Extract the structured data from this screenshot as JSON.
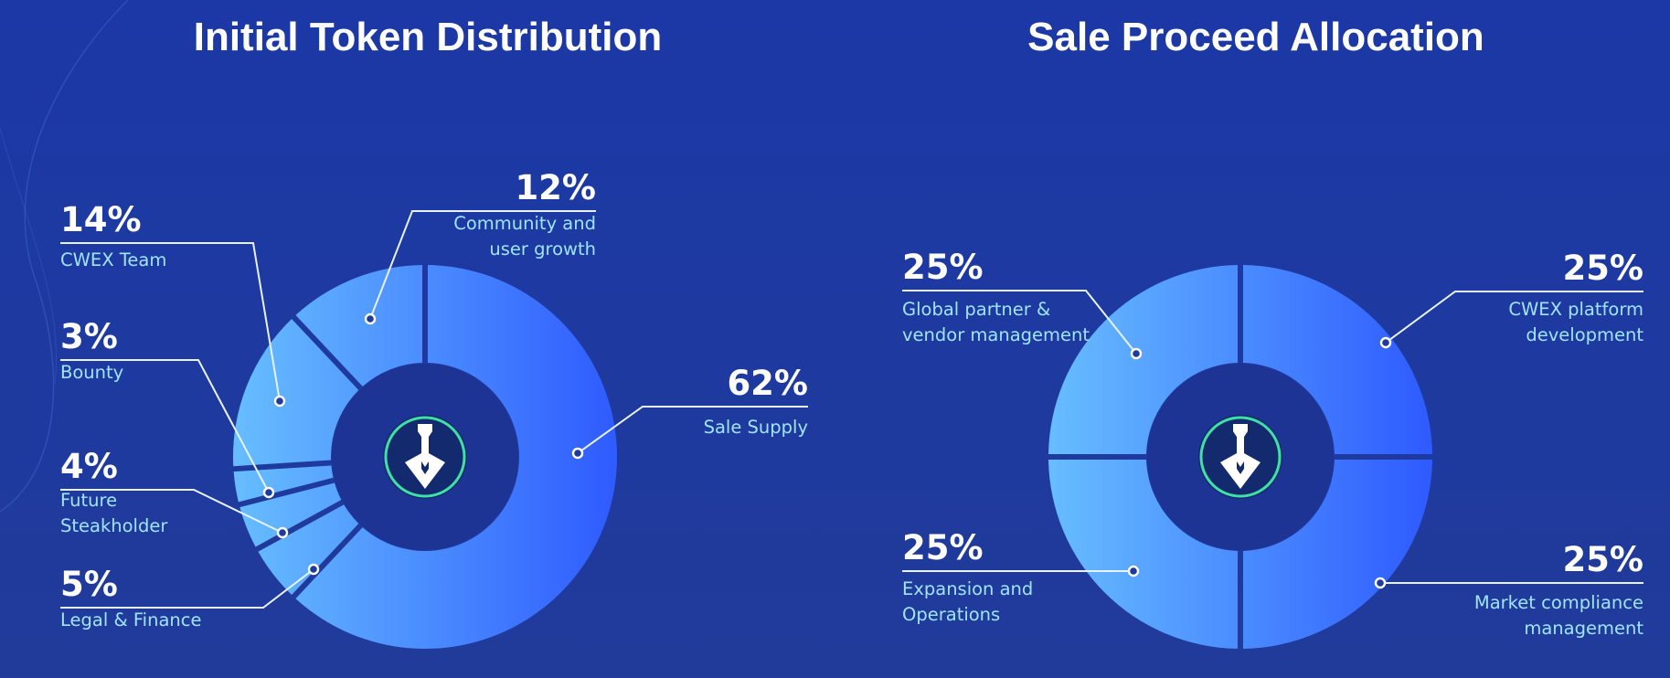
{
  "chart_data": [
    {
      "type": "pie",
      "title": "Initial Token Distribution",
      "unit": "%",
      "slices": [
        {
          "name": "Sale Supply",
          "lines": [
            "Sale Supply"
          ],
          "label": "62%",
          "value": 62
        },
        {
          "name": "Legal & Finance",
          "lines": [
            "Legal & Finance"
          ],
          "label": "5%",
          "value": 5
        },
        {
          "name": "Future Steakholder",
          "lines": [
            "Future",
            "Steakholder"
          ],
          "label": "4%",
          "value": 4
        },
        {
          "name": "Bounty",
          "lines": [
            "Bounty"
          ],
          "label": "3%",
          "value": 3
        },
        {
          "name": "CWEX Team",
          "lines": [
            "CWEX Team"
          ],
          "label": "14%",
          "value": 14
        },
        {
          "name": "Community and user growth",
          "lines": [
            "Community and",
            "user growth"
          ],
          "label": "12%",
          "value": 12
        }
      ]
    },
    {
      "type": "pie",
      "title": "Sale Proceed Allocation",
      "unit": "%",
      "slices": [
        {
          "name": "CWEX platform development",
          "lines": [
            "CWEX platform",
            "development"
          ],
          "label": "25%",
          "value": 25
        },
        {
          "name": "Market compliance management",
          "lines": [
            "Market compliance",
            "management"
          ],
          "label": "25%",
          "value": 25
        },
        {
          "name": "Expansion and Operations",
          "lines": [
            "Expansion and",
            "Operations"
          ],
          "label": "25%",
          "value": 25
        },
        {
          "name": "Global partner & vendor management",
          "lines": [
            "Global partner &",
            "vendor management"
          ],
          "label": "25%",
          "value": 25
        }
      ]
    }
  ],
  "colors": {
    "background": "#1f3a9e",
    "ring_light": "#63baff",
    "ring_dark": "#2f5cff",
    "hole": "#1d3494",
    "logo_badge": "#142a6e",
    "logo_ring": "#3ee0a6",
    "text_white": "#ffffff",
    "text_label": "#9fe4ff"
  },
  "logo_icon": "shovel-shield-icon"
}
